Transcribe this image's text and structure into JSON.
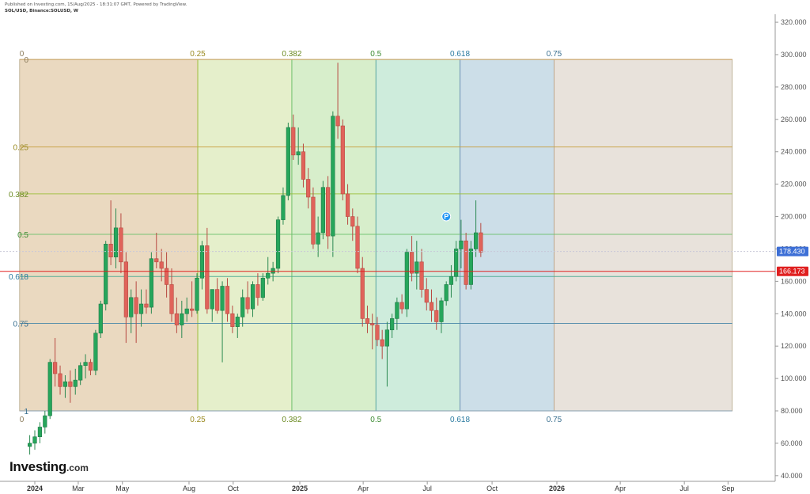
{
  "header": {
    "published": "Published on Investing.com, 15/Aug/2025 - 18:31:07 GMT, Powered by TradingView.",
    "symbol": "SOL/USD, Binance:SOLUSD, W"
  },
  "logo": {
    "brand": "Investing",
    "tld": ".com"
  },
  "colors": {
    "up": "#26a65b",
    "down": "#e0635a",
    "current_price_badge": "#3d6fd6",
    "level_badge": "#e02020"
  },
  "chart_data": {
    "type": "candlestick",
    "title": "",
    "ylim": [
      40,
      325
    ],
    "y_ticks": [
      "320.000",
      "300.000",
      "280.000",
      "260.000",
      "240.000",
      "220.000",
      "200.000",
      "180.000",
      "160.000",
      "140.000",
      "120.000",
      "100.000",
      "80.000",
      "60.000",
      "40.000"
    ],
    "x_ticks": [
      {
        "label": "2024",
        "date": "2024-01-01",
        "bold": true
      },
      {
        "label": "Mar",
        "date": "2024-03-01",
        "bold": false
      },
      {
        "label": "May",
        "date": "2024-05-01",
        "bold": false
      },
      {
        "label": "Aug",
        "date": "2024-08-01",
        "bold": false
      },
      {
        "label": "Oct",
        "date": "2024-10-01",
        "bold": false
      },
      {
        "label": "2025",
        "date": "2025-01-01",
        "bold": true
      },
      {
        "label": "Apr",
        "date": "2025-04-01",
        "bold": false
      },
      {
        "label": "Jul",
        "date": "2025-07-01",
        "bold": false
      },
      {
        "label": "Oct",
        "date": "2025-10-01",
        "bold": false
      },
      {
        "label": "2026",
        "date": "2026-01-01",
        "bold": true
      },
      {
        "label": "Apr",
        "date": "2026-04-01",
        "bold": false
      },
      {
        "label": "Jul",
        "date": "2026-07-01",
        "bold": false
      },
      {
        "label": "Sep",
        "date": "2026-09-01",
        "bold": false
      }
    ],
    "candles": [
      {
        "o": 58,
        "h": 65,
        "l": 53,
        "c": 60
      },
      {
        "o": 60,
        "h": 68,
        "l": 56,
        "c": 64
      },
      {
        "o": 64,
        "h": 73,
        "l": 60,
        "c": 70
      },
      {
        "o": 70,
        "h": 80,
        "l": 66,
        "c": 77
      },
      {
        "o": 77,
        "h": 112,
        "l": 75,
        "c": 110
      },
      {
        "o": 110,
        "h": 125,
        "l": 95,
        "c": 103
      },
      {
        "o": 103,
        "h": 108,
        "l": 90,
        "c": 95
      },
      {
        "o": 95,
        "h": 102,
        "l": 88,
        "c": 98
      },
      {
        "o": 98,
        "h": 105,
        "l": 85,
        "c": 95
      },
      {
        "o": 95,
        "h": 106,
        "l": 90,
        "c": 99
      },
      {
        "o": 99,
        "h": 110,
        "l": 96,
        "c": 108
      },
      {
        "o": 108,
        "h": 115,
        "l": 100,
        "c": 110
      },
      {
        "o": 110,
        "h": 112,
        "l": 102,
        "c": 105
      },
      {
        "o": 105,
        "h": 130,
        "l": 102,
        "c": 128
      },
      {
        "o": 128,
        "h": 148,
        "l": 125,
        "c": 146
      },
      {
        "o": 146,
        "h": 185,
        "l": 142,
        "c": 183
      },
      {
        "o": 183,
        "h": 210,
        "l": 170,
        "c": 175
      },
      {
        "o": 175,
        "h": 205,
        "l": 168,
        "c": 193
      },
      {
        "o": 193,
        "h": 202,
        "l": 165,
        "c": 172
      },
      {
        "o": 172,
        "h": 178,
        "l": 122,
        "c": 138
      },
      {
        "o": 138,
        "h": 155,
        "l": 128,
        "c": 150
      },
      {
        "o": 150,
        "h": 160,
        "l": 122,
        "c": 140
      },
      {
        "o": 140,
        "h": 155,
        "l": 132,
        "c": 146
      },
      {
        "o": 146,
        "h": 155,
        "l": 140,
        "c": 144
      },
      {
        "o": 144,
        "h": 178,
        "l": 140,
        "c": 174
      },
      {
        "o": 174,
        "h": 190,
        "l": 168,
        "c": 172
      },
      {
        "o": 172,
        "h": 180,
        "l": 160,
        "c": 168
      },
      {
        "o": 168,
        "h": 178,
        "l": 150,
        "c": 158
      },
      {
        "o": 158,
        "h": 168,
        "l": 135,
        "c": 140
      },
      {
        "o": 140,
        "h": 150,
        "l": 128,
        "c": 133
      },
      {
        "o": 133,
        "h": 148,
        "l": 125,
        "c": 140
      },
      {
        "o": 140,
        "h": 150,
        "l": 135,
        "c": 143
      },
      {
        "o": 143,
        "h": 160,
        "l": 138,
        "c": 142
      },
      {
        "o": 142,
        "h": 165,
        "l": 140,
        "c": 162
      },
      {
        "o": 162,
        "h": 185,
        "l": 155,
        "c": 182
      },
      {
        "o": 182,
        "h": 193,
        "l": 140,
        "c": 143
      },
      {
        "o": 143,
        "h": 155,
        "l": 135,
        "c": 155
      },
      {
        "o": 155,
        "h": 162,
        "l": 140,
        "c": 142
      },
      {
        "o": 142,
        "h": 160,
        "l": 110,
        "c": 157
      },
      {
        "o": 157,
        "h": 162,
        "l": 135,
        "c": 140
      },
      {
        "o": 140,
        "h": 145,
        "l": 128,
        "c": 132
      },
      {
        "o": 132,
        "h": 140,
        "l": 125,
        "c": 138
      },
      {
        "o": 138,
        "h": 155,
        "l": 132,
        "c": 150
      },
      {
        "o": 150,
        "h": 160,
        "l": 140,
        "c": 143
      },
      {
        "o": 143,
        "h": 160,
        "l": 138,
        "c": 158
      },
      {
        "o": 158,
        "h": 165,
        "l": 145,
        "c": 150
      },
      {
        "o": 150,
        "h": 165,
        "l": 148,
        "c": 162
      },
      {
        "o": 162,
        "h": 175,
        "l": 158,
        "c": 165
      },
      {
        "o": 165,
        "h": 172,
        "l": 160,
        "c": 168
      },
      {
        "o": 168,
        "h": 200,
        "l": 165,
        "c": 198
      },
      {
        "o": 198,
        "h": 218,
        "l": 195,
        "c": 213
      },
      {
        "o": 213,
        "h": 258,
        "l": 210,
        "c": 255
      },
      {
        "o": 255,
        "h": 263,
        "l": 235,
        "c": 238
      },
      {
        "o": 238,
        "h": 255,
        "l": 232,
        "c": 240
      },
      {
        "o": 240,
        "h": 245,
        "l": 218,
        "c": 223
      },
      {
        "o": 223,
        "h": 230,
        "l": 205,
        "c": 212
      },
      {
        "o": 212,
        "h": 218,
        "l": 180,
        "c": 183
      },
      {
        "o": 183,
        "h": 200,
        "l": 175,
        "c": 190
      },
      {
        "o": 190,
        "h": 222,
        "l": 186,
        "c": 218
      },
      {
        "o": 218,
        "h": 225,
        "l": 180,
        "c": 188
      },
      {
        "o": 188,
        "h": 265,
        "l": 175,
        "c": 262
      },
      {
        "o": 262,
        "h": 295,
        "l": 248,
        "c": 256
      },
      {
        "o": 256,
        "h": 260,
        "l": 210,
        "c": 214
      },
      {
        "o": 214,
        "h": 220,
        "l": 195,
        "c": 200
      },
      {
        "o": 200,
        "h": 205,
        "l": 185,
        "c": 194
      },
      {
        "o": 194,
        "h": 200,
        "l": 165,
        "c": 168
      },
      {
        "o": 168,
        "h": 175,
        "l": 132,
        "c": 137
      },
      {
        "o": 137,
        "h": 145,
        "l": 128,
        "c": 134
      },
      {
        "o": 134,
        "h": 140,
        "l": 118,
        "c": 133
      },
      {
        "o": 133,
        "h": 138,
        "l": 120,
        "c": 124
      },
      {
        "o": 124,
        "h": 130,
        "l": 112,
        "c": 120
      },
      {
        "o": 120,
        "h": 135,
        "l": 95,
        "c": 130
      },
      {
        "o": 130,
        "h": 140,
        "l": 125,
        "c": 137
      },
      {
        "o": 137,
        "h": 150,
        "l": 130,
        "c": 147
      },
      {
        "o": 147,
        "h": 152,
        "l": 140,
        "c": 143
      },
      {
        "o": 143,
        "h": 180,
        "l": 138,
        "c": 178
      },
      {
        "o": 178,
        "h": 188,
        "l": 160,
        "c": 165
      },
      {
        "o": 165,
        "h": 185,
        "l": 155,
        "c": 172
      },
      {
        "o": 172,
        "h": 180,
        "l": 150,
        "c": 155
      },
      {
        "o": 155,
        "h": 162,
        "l": 142,
        "c": 147
      },
      {
        "o": 147,
        "h": 155,
        "l": 135,
        "c": 142
      },
      {
        "o": 142,
        "h": 150,
        "l": 130,
        "c": 135
      },
      {
        "o": 135,
        "h": 150,
        "l": 128,
        "c": 148
      },
      {
        "o": 148,
        "h": 160,
        "l": 145,
        "c": 158
      },
      {
        "o": 158,
        "h": 170,
        "l": 150,
        "c": 163
      },
      {
        "o": 163,
        "h": 185,
        "l": 160,
        "c": 180
      },
      {
        "o": 180,
        "h": 198,
        "l": 168,
        "c": 185
      },
      {
        "o": 185,
        "h": 190,
        "l": 155,
        "c": 158
      },
      {
        "o": 158,
        "h": 185,
        "l": 155,
        "c": 180
      },
      {
        "o": 180,
        "h": 210,
        "l": 175,
        "c": 190
      },
      {
        "o": 190,
        "h": 196,
        "l": 175,
        "c": 178
      }
    ],
    "last_price": {
      "value": 178.43,
      "label": "178.430"
    },
    "level_line": {
      "value": 166.173,
      "label": "166.173"
    },
    "fib_time_zone": {
      "start_date": "2023-12-11",
      "end_date": "2026-09-07",
      "top": 297,
      "bottom": 80,
      "levels": [
        "0",
        "0.25",
        "0.382",
        "0.5",
        "0.618",
        "0.75"
      ]
    },
    "fib_retracement_levels": [
      {
        "label": "0",
        "value": 297
      },
      {
        "label": "0.25",
        "value": 243
      },
      {
        "label": "0.382",
        "value": 214
      },
      {
        "label": "0.5",
        "value": 189
      },
      {
        "label": "0.618",
        "value": 163
      },
      {
        "label": "0.75",
        "value": 134
      },
      {
        "label": "1",
        "value": 80
      }
    ],
    "annotation_marker": {
      "label": "P",
      "value": 200
    }
  }
}
